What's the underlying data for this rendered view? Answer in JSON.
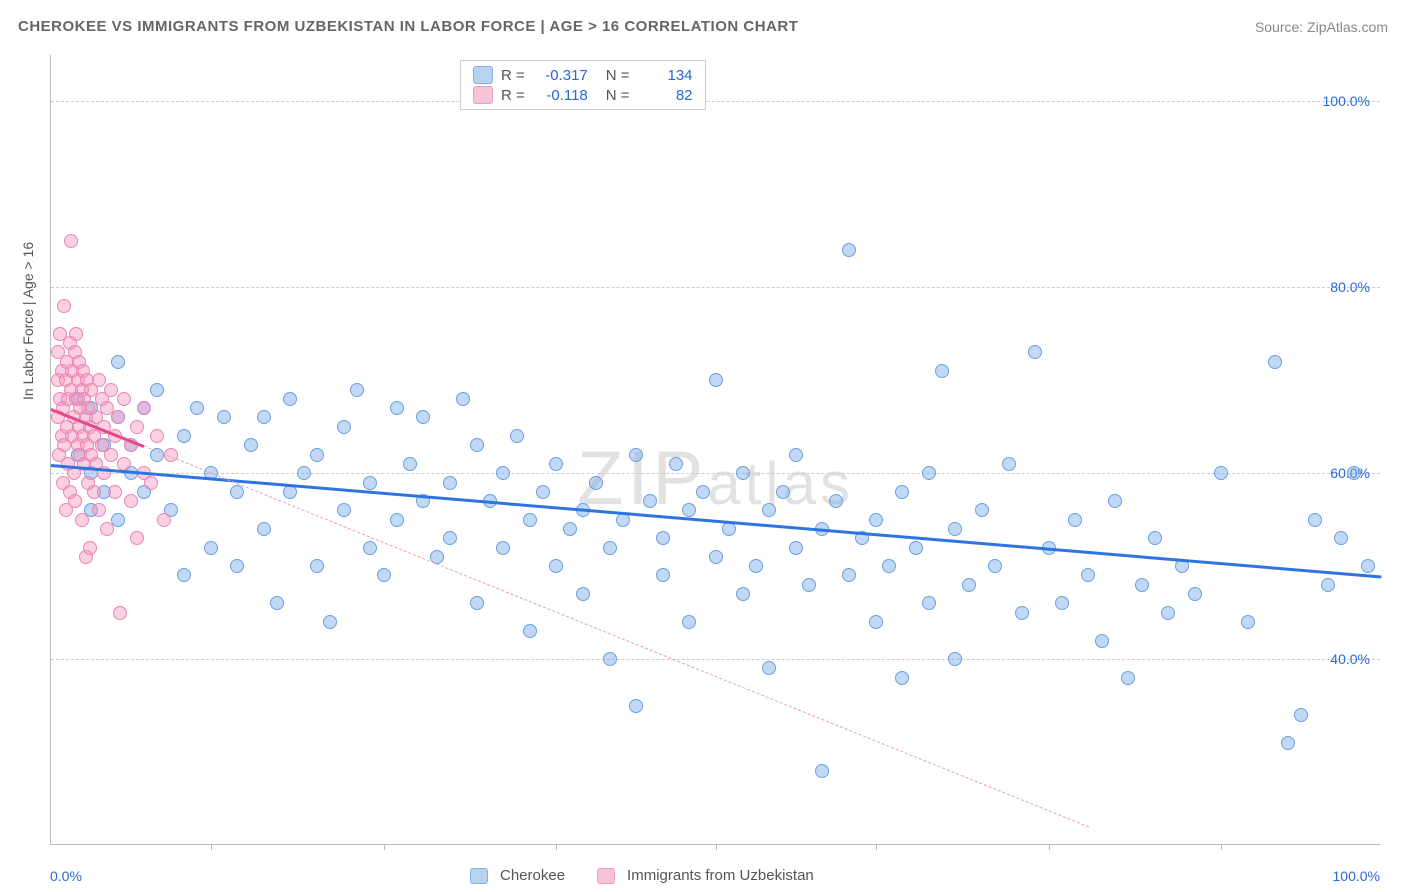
{
  "title": "CHEROKEE VS IMMIGRANTS FROM UZBEKISTAN IN LABOR FORCE | AGE > 16 CORRELATION CHART",
  "source_label": "Source: ZipAtlas.com",
  "y_axis_label": "In Labor Force | Age > 16",
  "watermark": "ZIPatlas",
  "chart": {
    "type": "scatter",
    "xlim": [
      0,
      100
    ],
    "ylim": [
      20,
      105
    ],
    "y_ticks": [
      40,
      60,
      80,
      100
    ],
    "y_tick_labels": [
      "40.0%",
      "60.0%",
      "80.0%",
      "100.0%"
    ],
    "x_edge_labels": [
      "0.0%",
      "100.0%"
    ],
    "x_tick_positions": [
      12,
      25,
      38,
      50,
      62,
      75,
      88
    ],
    "background_color": "#ffffff",
    "grid_color": "#cccccc",
    "grid_dash": true,
    "marker_radius": 7,
    "marker_stroke_width": 1.5,
    "series": [
      {
        "name": "Cherokee",
        "fill_color": "rgba(120,170,235,0.45)",
        "stroke_color": "#6aa0e0",
        "legend_swatch_fill": "#b9d2f2",
        "legend_swatch_stroke": "#7fb0e8",
        "correlation_R": "-0.317",
        "N": "134",
        "trend": {
          "x1": 0,
          "y1": 61,
          "x2": 100,
          "y2": 49,
          "color": "#2d74e0",
          "width": 3,
          "dash": false
        },
        "points": [
          [
            2,
            68
          ],
          [
            2,
            62
          ],
          [
            3,
            60
          ],
          [
            3,
            56
          ],
          [
            3,
            67
          ],
          [
            4,
            63
          ],
          [
            4,
            58
          ],
          [
            5,
            66
          ],
          [
            5,
            72
          ],
          [
            5,
            55
          ],
          [
            6,
            63
          ],
          [
            6,
            60
          ],
          [
            7,
            67
          ],
          [
            7,
            58
          ],
          [
            8,
            69
          ],
          [
            8,
            62
          ],
          [
            9,
            56
          ],
          [
            10,
            49
          ],
          [
            10,
            64
          ],
          [
            11,
            67
          ],
          [
            12,
            60
          ],
          [
            12,
            52
          ],
          [
            13,
            66
          ],
          [
            14,
            50
          ],
          [
            14,
            58
          ],
          [
            15,
            63
          ],
          [
            16,
            66
          ],
          [
            16,
            54
          ],
          [
            17,
            46
          ],
          [
            18,
            58
          ],
          [
            18,
            68
          ],
          [
            19,
            60
          ],
          [
            20,
            50
          ],
          [
            20,
            62
          ],
          [
            21,
            44
          ],
          [
            22,
            56
          ],
          [
            22,
            65
          ],
          [
            23,
            69
          ],
          [
            24,
            59
          ],
          [
            24,
            52
          ],
          [
            25,
            49
          ],
          [
            26,
            67
          ],
          [
            26,
            55
          ],
          [
            27,
            61
          ],
          [
            28,
            57
          ],
          [
            28,
            66
          ],
          [
            29,
            51
          ],
          [
            30,
            59
          ],
          [
            30,
            53
          ],
          [
            31,
            68
          ],
          [
            32,
            63
          ],
          [
            32,
            46
          ],
          [
            33,
            57
          ],
          [
            34,
            60
          ],
          [
            34,
            52
          ],
          [
            35,
            64
          ],
          [
            36,
            55
          ],
          [
            36,
            43
          ],
          [
            37,
            58
          ],
          [
            38,
            61
          ],
          [
            38,
            50
          ],
          [
            39,
            54
          ],
          [
            40,
            56
          ],
          [
            40,
            47
          ],
          [
            41,
            59
          ],
          [
            42,
            52
          ],
          [
            42,
            40
          ],
          [
            43,
            55
          ],
          [
            44,
            62
          ],
          [
            44,
            35
          ],
          [
            45,
            57
          ],
          [
            46,
            49
          ],
          [
            46,
            53
          ],
          [
            47,
            61
          ],
          [
            48,
            56
          ],
          [
            48,
            44
          ],
          [
            49,
            58
          ],
          [
            50,
            51
          ],
          [
            50,
            70
          ],
          [
            51,
            54
          ],
          [
            52,
            47
          ],
          [
            52,
            60
          ],
          [
            53,
            50
          ],
          [
            54,
            56
          ],
          [
            54,
            39
          ],
          [
            55,
            58
          ],
          [
            56,
            52
          ],
          [
            56,
            62
          ],
          [
            57,
            48
          ],
          [
            58,
            54
          ],
          [
            58,
            28
          ],
          [
            59,
            57
          ],
          [
            60,
            49
          ],
          [
            60,
            84
          ],
          [
            61,
            53
          ],
          [
            62,
            44
          ],
          [
            62,
            55
          ],
          [
            63,
            50
          ],
          [
            64,
            58
          ],
          [
            64,
            38
          ],
          [
            65,
            52
          ],
          [
            66,
            46
          ],
          [
            66,
            60
          ],
          [
            67,
            71
          ],
          [
            68,
            54
          ],
          [
            68,
            40
          ],
          [
            69,
            48
          ],
          [
            70,
            56
          ],
          [
            71,
            50
          ],
          [
            72,
            61
          ],
          [
            73,
            45
          ],
          [
            74,
            73
          ],
          [
            75,
            52
          ],
          [
            76,
            46
          ],
          [
            77,
            55
          ],
          [
            78,
            49
          ],
          [
            79,
            42
          ],
          [
            80,
            57
          ],
          [
            81,
            38
          ],
          [
            82,
            48
          ],
          [
            83,
            53
          ],
          [
            84,
            45
          ],
          [
            85,
            50
          ],
          [
            86,
            47
          ],
          [
            88,
            60
          ],
          [
            90,
            44
          ],
          [
            92,
            72
          ],
          [
            93,
            31
          ],
          [
            94,
            34
          ],
          [
            95,
            55
          ],
          [
            96,
            48
          ],
          [
            97,
            53
          ],
          [
            98,
            60
          ],
          [
            99,
            50
          ]
        ]
      },
      {
        "name": "Immigrants from Uzbekistan",
        "fill_color": "rgba(245,150,190,0.45)",
        "stroke_color": "#e986b3",
        "legend_swatch_fill": "#f6c3d8",
        "legend_swatch_stroke": "#ec9ec0",
        "correlation_R": "-0.118",
        "N": "82",
        "trend": {
          "x1": 0,
          "y1": 67,
          "x2": 78,
          "y2": 22,
          "color": "#e89fbd",
          "width": 1.5,
          "dash": true
        },
        "trend_solid_segment": {
          "x1": 0,
          "y1": 67,
          "x2": 7,
          "y2": 63,
          "color": "#e24a88",
          "width": 3,
          "dash": false
        },
        "points": [
          [
            0.5,
            66
          ],
          [
            0.5,
            70
          ],
          [
            0.5,
            73
          ],
          [
            0.6,
            62
          ],
          [
            0.7,
            68
          ],
          [
            0.7,
            75
          ],
          [
            0.8,
            64
          ],
          [
            0.8,
            71
          ],
          [
            0.9,
            59
          ],
          [
            0.9,
            67
          ],
          [
            1.0,
            78
          ],
          [
            1.0,
            63
          ],
          [
            1.1,
            70
          ],
          [
            1.1,
            56
          ],
          [
            1.2,
            65
          ],
          [
            1.2,
            72
          ],
          [
            1.3,
            68
          ],
          [
            1.3,
            61
          ],
          [
            1.4,
            74
          ],
          [
            1.4,
            58
          ],
          [
            1.5,
            69
          ],
          [
            1.5,
            85
          ],
          [
            1.6,
            64
          ],
          [
            1.6,
            71
          ],
          [
            1.7,
            66
          ],
          [
            1.7,
            60
          ],
          [
            1.8,
            73
          ],
          [
            1.8,
            57
          ],
          [
            1.9,
            68
          ],
          [
            1.9,
            75
          ],
          [
            2.0,
            63
          ],
          [
            2.0,
            70
          ],
          [
            2.1,
            65
          ],
          [
            2.1,
            72
          ],
          [
            2.2,
            62
          ],
          [
            2.2,
            67
          ],
          [
            2.3,
            55
          ],
          [
            2.3,
            69
          ],
          [
            2.4,
            64
          ],
          [
            2.4,
            71
          ],
          [
            2.5,
            61
          ],
          [
            2.5,
            68
          ],
          [
            2.6,
            66
          ],
          [
            2.6,
            51
          ],
          [
            2.7,
            63
          ],
          [
            2.7,
            70
          ],
          [
            2.8,
            59
          ],
          [
            2.8,
            67
          ],
          [
            2.9,
            65
          ],
          [
            2.9,
            52
          ],
          [
            3.0,
            62
          ],
          [
            3.0,
            69
          ],
          [
            3.2,
            64
          ],
          [
            3.2,
            58
          ],
          [
            3.4,
            66
          ],
          [
            3.4,
            61
          ],
          [
            3.6,
            70
          ],
          [
            3.6,
            56
          ],
          [
            3.8,
            63
          ],
          [
            3.8,
            68
          ],
          [
            4.0,
            60
          ],
          [
            4.0,
            65
          ],
          [
            4.2,
            67
          ],
          [
            4.2,
            54
          ],
          [
            4.5,
            62
          ],
          [
            4.5,
            69
          ],
          [
            4.8,
            58
          ],
          [
            4.8,
            64
          ],
          [
            5.0,
            66
          ],
          [
            5.2,
            45
          ],
          [
            5.5,
            61
          ],
          [
            5.5,
            68
          ],
          [
            6.0,
            63
          ],
          [
            6.0,
            57
          ],
          [
            6.5,
            65
          ],
          [
            6.5,
            53
          ],
          [
            7.0,
            60
          ],
          [
            7.0,
            67
          ],
          [
            7.5,
            59
          ],
          [
            8.0,
            64
          ],
          [
            8.5,
            55
          ],
          [
            9.0,
            62
          ]
        ]
      }
    ]
  },
  "legend_top": {
    "rows": [
      {
        "swatch": 0,
        "R_label": "R =",
        "N_label": "N ="
      },
      {
        "swatch": 1,
        "R_label": "R =",
        "N_label": "N ="
      }
    ]
  },
  "legend_bottom_items": [
    "Cherokee",
    "Immigrants from Uzbekistan"
  ]
}
